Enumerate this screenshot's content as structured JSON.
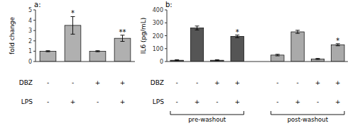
{
  "chart_data": [
    {
      "type": "bar",
      "title": "a:",
      "ylabel": "fold change",
      "values": [
        1.0,
        3.5,
        1.0,
        2.25
      ],
      "errors": [
        0.05,
        0.85,
        0.05,
        0.3
      ],
      "color": "#b0b0b0",
      "ylim": [
        0,
        5.0
      ],
      "yticks": [
        0.0,
        1.0,
        2.0,
        3.0,
        4.0,
        5.0
      ],
      "grid": false,
      "tick_labels": "y",
      "annotations": [
        null,
        "*",
        null,
        "**"
      ],
      "condition_rows": [
        {
          "name": "DBZ",
          "labels": [
            "-",
            "-",
            "+",
            "+"
          ]
        },
        {
          "name": "LPS",
          "labels": [
            "-",
            "+",
            "-",
            "+"
          ]
        }
      ]
    },
    {
      "type": "bar",
      "title": "b:",
      "ylabel": "IL6 (pg/mL)",
      "values": [
        10,
        260,
        10,
        195,
        50,
        230,
        20,
        130
      ],
      "errors": [
        4,
        15,
        4,
        10,
        6,
        12,
        4,
        8
      ],
      "colors": [
        "#555555",
        "#555555",
        "#555555",
        "#555555",
        "#aaaaaa",
        "#aaaaaa",
        "#aaaaaa",
        "#aaaaaa"
      ],
      "ylim": [
        0,
        400
      ],
      "yticks": [
        0,
        100,
        200,
        300,
        400
      ],
      "grid": false,
      "tick_labels": "y",
      "annotations": [
        null,
        null,
        null,
        "*",
        null,
        null,
        null,
        "*"
      ],
      "condition_rows": [
        {
          "name": "DBZ",
          "labels": [
            "-",
            "-",
            "+",
            "+",
            "-",
            "-",
            "+",
            "+"
          ]
        },
        {
          "name": "LPS",
          "labels": [
            "-",
            "+",
            "-",
            "+",
            "-",
            "+",
            "-",
            "+"
          ]
        }
      ],
      "groups": [
        "pre-washout",
        "pre-washout",
        "pre-washout",
        "pre-washout",
        "post-washout",
        "post-washout",
        "post-washout",
        "post-washout"
      ]
    }
  ]
}
